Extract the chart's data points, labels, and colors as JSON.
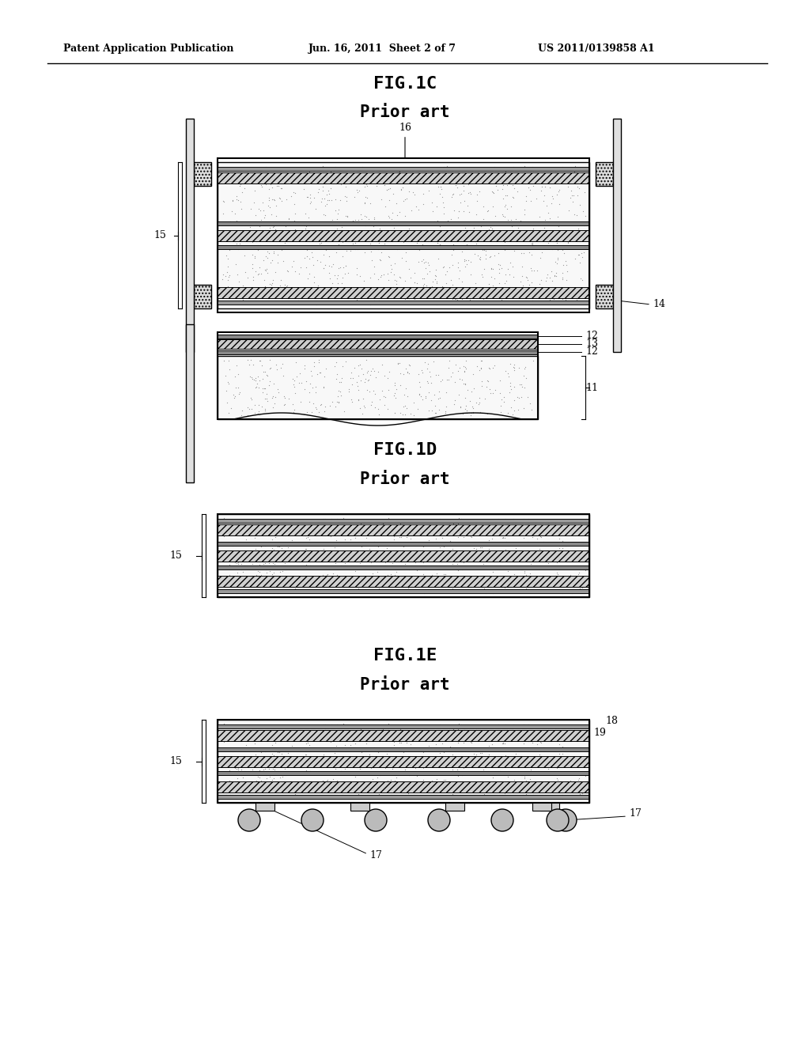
{
  "bg_color": "#ffffff",
  "line_color": "#000000",
  "header_left": "Patent Application Publication",
  "header_mid": "Jun. 16, 2011  Sheet 2 of 7",
  "header_right": "US 2011/0139858 A1",
  "fig1c_title": "FIG.1C",
  "fig1d_title": "FIG.1D",
  "fig1e_title": "FIG.1E",
  "prior_art": "Prior art",
  "hatch_color": "#888888",
  "fill_light": "#e8e8e8",
  "fill_speckle": "#f0f0f0"
}
